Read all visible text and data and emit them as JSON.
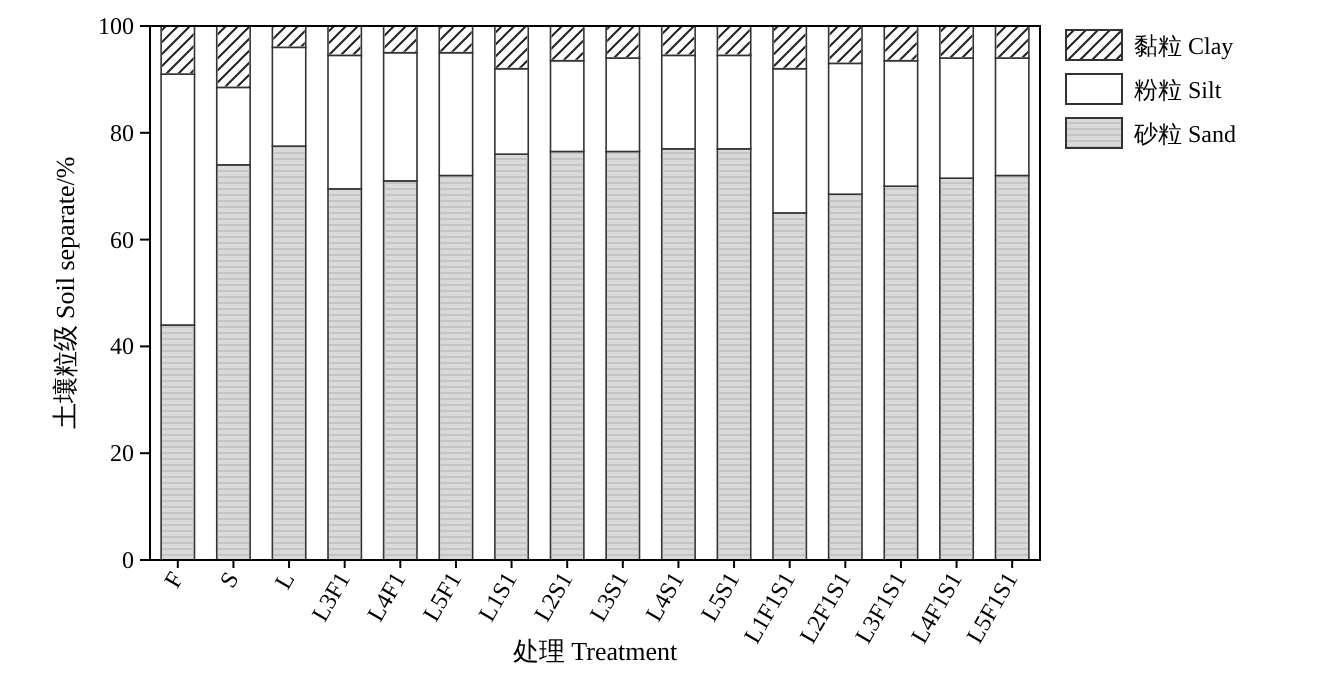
{
  "chart_data": {
    "type": "bar",
    "stacked": true,
    "xlabel": "处理 Treatment",
    "ylabel": "土壤粒级 Soil separate/%",
    "categories": [
      "F",
      "S",
      "L",
      "L3F1",
      "L4F1",
      "L5F1",
      "L1S1",
      "L2S1",
      "L3S1",
      "L4S1",
      "L5S1",
      "L1F1S1",
      "L2F1S1",
      "L3F1S1",
      "L4F1S1",
      "L5F1S1"
    ],
    "series": [
      {
        "name": "砂粒 Sand",
        "color": "#d9d9d9",
        "values": [
          44,
          74,
          77.5,
          69.5,
          71,
          72,
          76,
          76.5,
          76.5,
          77,
          77,
          65,
          68.5,
          70,
          71.5,
          72
        ]
      },
      {
        "name": "粉粒 Silt",
        "color": "#ffffff",
        "values": [
          47,
          14.5,
          18.5,
          25,
          24,
          23,
          16,
          17,
          17.5,
          17.5,
          17.5,
          27,
          24.5,
          23.5,
          22.5,
          22
        ]
      },
      {
        "name": "黏粒 Clay",
        "color": "#ffffff",
        "values": [
          9,
          11.5,
          4,
          5.5,
          5,
          5,
          8,
          6.5,
          6,
          5.5,
          5.5,
          8,
          7,
          6.5,
          6,
          6
        ]
      }
    ],
    "ylim": [
      0,
      100
    ],
    "yticks": [
      0,
      20,
      40,
      60,
      80,
      100
    ],
    "legend": "top right",
    "grid": false
  }
}
